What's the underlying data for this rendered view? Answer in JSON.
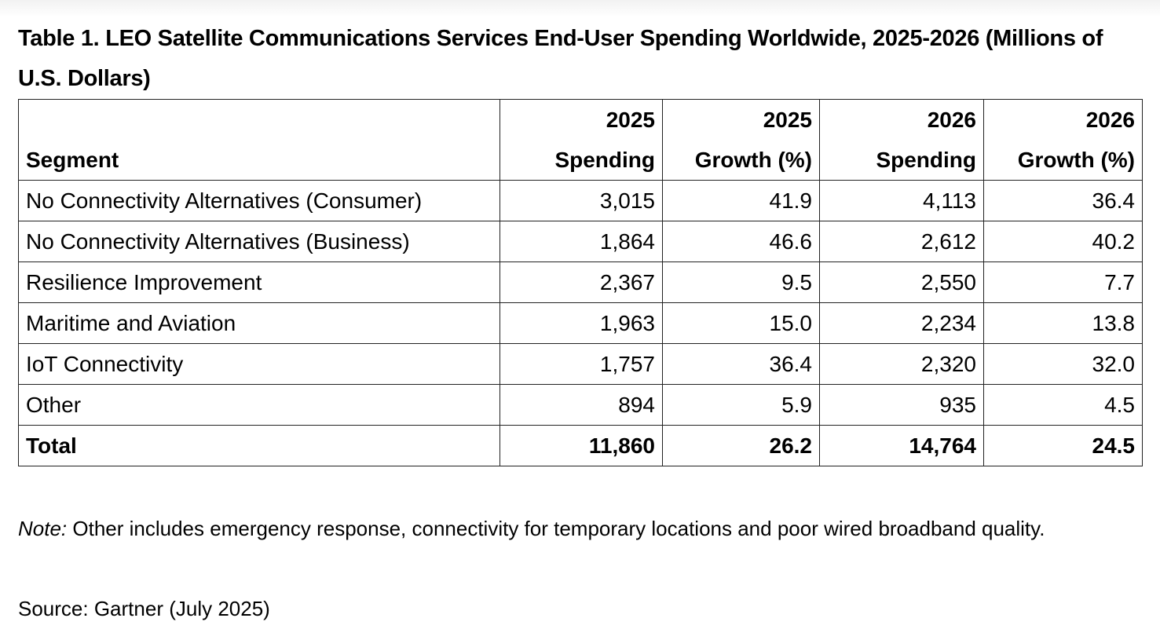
{
  "title": "Table 1. LEO Satellite Communications Services End-User Spending Worldwide, 2025-2026 (Millions of U.S. Dollars)",
  "table": {
    "headers": [
      {
        "top": "",
        "bottom": "Segment"
      },
      {
        "top": "2025",
        "bottom": "Spending"
      },
      {
        "top": "2025",
        "bottom": "Growth (%)"
      },
      {
        "top": "2026",
        "bottom": "Spending"
      },
      {
        "top": "2026",
        "bottom": "Growth (%)"
      }
    ],
    "rows": [
      [
        "No Connectivity Alternatives (Consumer)",
        "3,015",
        "41.9",
        "4,113",
        "36.4"
      ],
      [
        "No Connectivity Alternatives (Business)",
        "1,864",
        "46.6",
        "2,612",
        "40.2"
      ],
      [
        "Resilience Improvement",
        "2,367",
        "9.5",
        "2,550",
        "7.7"
      ],
      [
        "Maritime and Aviation",
        "1,963",
        "15.0",
        "2,234",
        "13.8"
      ],
      [
        "IoT Connectivity",
        "1,757",
        "36.4",
        "2,320",
        "32.0"
      ],
      [
        "Other",
        "894",
        "5.9",
        "935",
        "4.5"
      ]
    ],
    "total": [
      "Total",
      "11,860",
      "26.2",
      "14,764",
      "24.5"
    ]
  },
  "note": {
    "label": "Note:",
    "text": " Other includes emergency response, connectivity for temporary locations and poor wired broadband quality."
  },
  "source": "Source: Gartner (July 2025)"
}
